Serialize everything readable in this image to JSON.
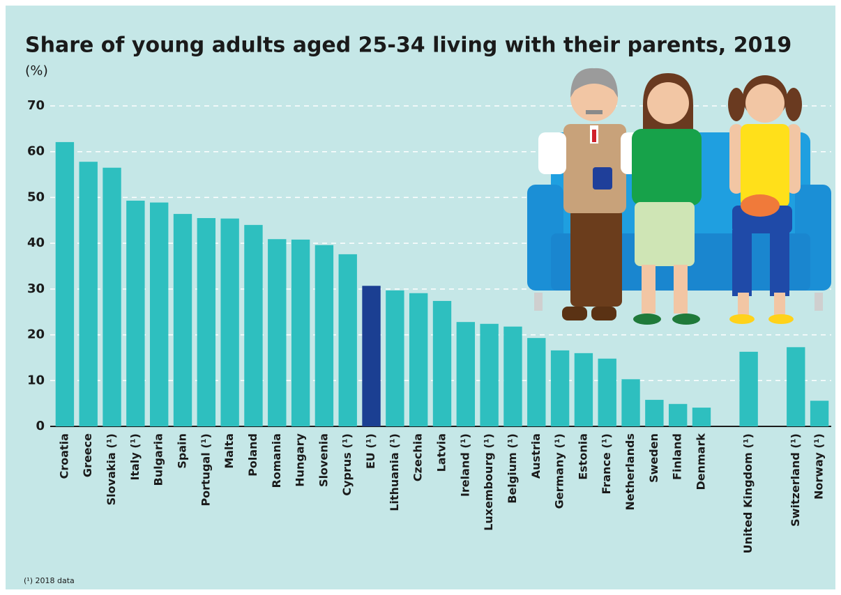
{
  "chart_data": {
    "type": "bar",
    "title": "Share of young adults aged 25-34 living with their parents, 2019",
    "subtitle": "(%)",
    "footnote": "(¹) 2018 data",
    "categories": [
      "Croatia",
      "Greece",
      "Slovakia (¹)",
      "Italy (¹)",
      "Bulgaria",
      "Spain",
      "Portugal (¹)",
      "Malta",
      "Poland",
      "Romania",
      "Hungary",
      "Slovenia",
      "Cyprus (¹)",
      "EU (¹)",
      "Lithuania (¹)",
      "Czechia",
      "Latvia",
      "Ireland (¹)",
      "Luxembourg (¹)",
      "Belgium (¹)",
      "Austria",
      "Germany (¹)",
      "Estonia",
      "France (¹)",
      "Netherlands",
      "Sweden",
      "Finland",
      "Denmark",
      null,
      "United Kingdom (¹)",
      null,
      "Switzerland (¹)",
      "Norway (¹)"
    ],
    "values": [
      62.1,
      57.8,
      56.5,
      49.3,
      48.9,
      46.4,
      45.5,
      45.4,
      44.0,
      40.9,
      40.8,
      39.6,
      37.6,
      30.7,
      29.7,
      29.1,
      27.4,
      22.8,
      22.4,
      21.8,
      19.3,
      16.6,
      16.0,
      14.8,
      10.3,
      5.8,
      4.9,
      4.1,
      null,
      16.3,
      null,
      17.3,
      5.6
    ],
    "colors": [
      "#2ebfbf",
      "#2ebfbf",
      "#2ebfbf",
      "#2ebfbf",
      "#2ebfbf",
      "#2ebfbf",
      "#2ebfbf",
      "#2ebfbf",
      "#2ebfbf",
      "#2ebfbf",
      "#2ebfbf",
      "#2ebfbf",
      "#2ebfbf",
      "#1b3f92",
      "#2ebfbf",
      "#2ebfbf",
      "#2ebfbf",
      "#2ebfbf",
      "#2ebfbf",
      "#2ebfbf",
      "#2ebfbf",
      "#2ebfbf",
      "#2ebfbf",
      "#2ebfbf",
      "#2ebfbf",
      "#2ebfbf",
      "#2ebfbf",
      "#2ebfbf",
      null,
      "#2ebfbf",
      null,
      "#2ebfbf",
      "#2ebfbf"
    ],
    "ylim": [
      0,
      70
    ],
    "yticks": [
      0,
      10,
      20,
      30,
      40,
      50,
      60,
      70
    ],
    "grid": true
  }
}
